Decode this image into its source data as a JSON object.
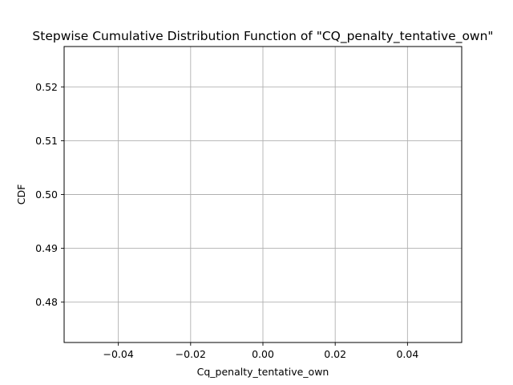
{
  "chart_data": {
    "type": "line",
    "title": "Stepwise Cumulative Distribution Function of \"CQ_penalty_tentative_own\"",
    "xlabel": "Cq_penalty_tentative_own",
    "ylabel": "CDF",
    "xlim": [
      -0.055,
      0.055
    ],
    "ylim": [
      0.4725,
      0.5275
    ],
    "x_ticks": [
      -0.04,
      -0.02,
      0.0,
      0.02,
      0.04
    ],
    "x_tick_labels": [
      "−0.04",
      "−0.02",
      "0.00",
      "0.02",
      "0.04"
    ],
    "y_ticks": [
      0.48,
      0.49,
      0.5,
      0.51,
      0.52
    ],
    "y_tick_labels": [
      "0.48",
      "0.49",
      "0.50",
      "0.51",
      "0.52"
    ],
    "grid": true,
    "series": []
  },
  "colors": {
    "axes": "#000000",
    "grid": "#b0b0b0",
    "background": "#ffffff"
  }
}
